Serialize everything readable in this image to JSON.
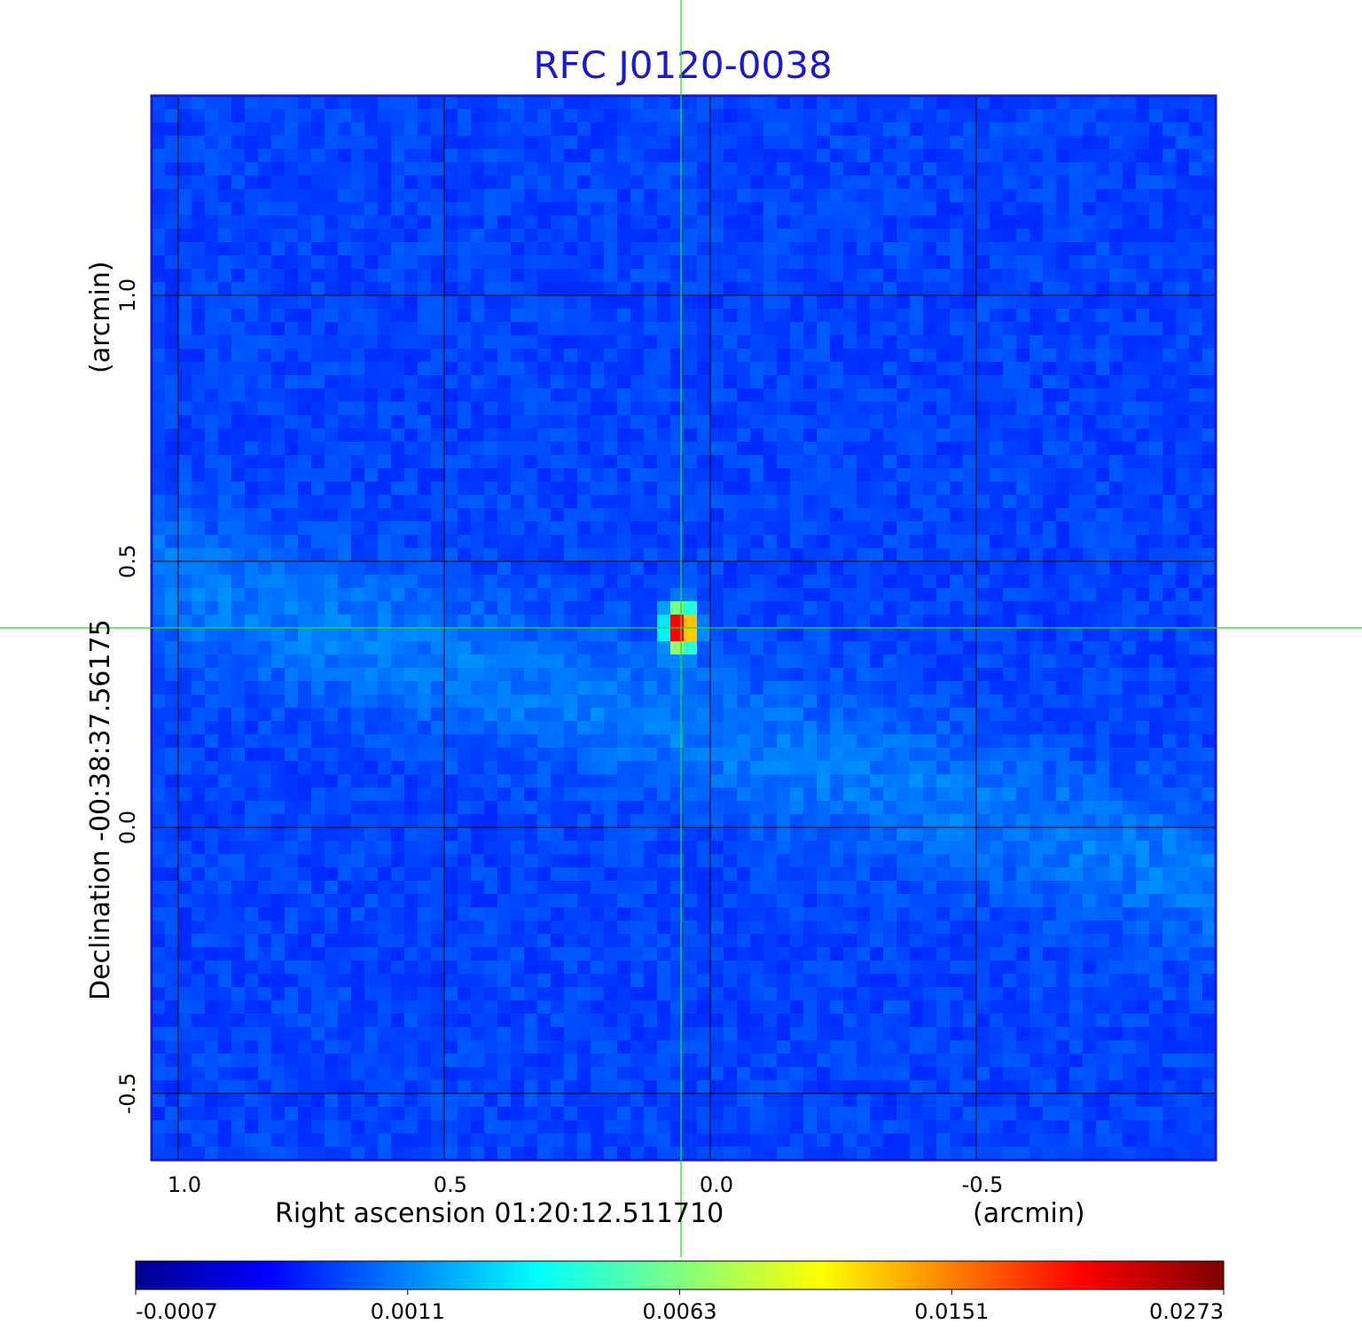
{
  "chart_data": {
    "type": "heatmap",
    "title": "RFC J0120-0038",
    "xlabel": "Right ascension  01:20:12.511710",
    "xunit": "(arcmin)",
    "ylabel": "Declination  -00:38:37.56175",
    "yunit": "(arcmin)",
    "xlim": [
      1.05,
      -0.95
    ],
    "ylim": [
      -0.625,
      1.375
    ],
    "x_ticks": [
      {
        "value": 1.0,
        "label": "1.0"
      },
      {
        "value": 0.5,
        "label": "0.5"
      },
      {
        "value": 0.0,
        "label": "0.0"
      },
      {
        "value": -0.5,
        "label": "-0.5"
      }
    ],
    "y_ticks": [
      {
        "value": 1.0,
        "label": "1.0"
      },
      {
        "value": 0.5,
        "label": "0.5"
      },
      {
        "value": 0.0,
        "label": "0.0"
      },
      {
        "value": -0.5,
        "label": "-0.5"
      }
    ],
    "grid": true,
    "crosshair": {
      "x": 0.055,
      "y": 0.375
    },
    "source_peak": {
      "x": 0.055,
      "y": 0.375,
      "value": 0.0273
    },
    "colormap": "jet",
    "colorbar": {
      "min": -0.0007,
      "max": 0.0273,
      "ticks": [
        "-0.0007",
        "0.0011",
        "0.0063",
        "0.0151",
        "0.0273"
      ]
    },
    "colors": {
      "title": "#1a1acc",
      "grid": "#000000",
      "crosshair": "#22dd22",
      "frame": "#1a1acc"
    }
  }
}
